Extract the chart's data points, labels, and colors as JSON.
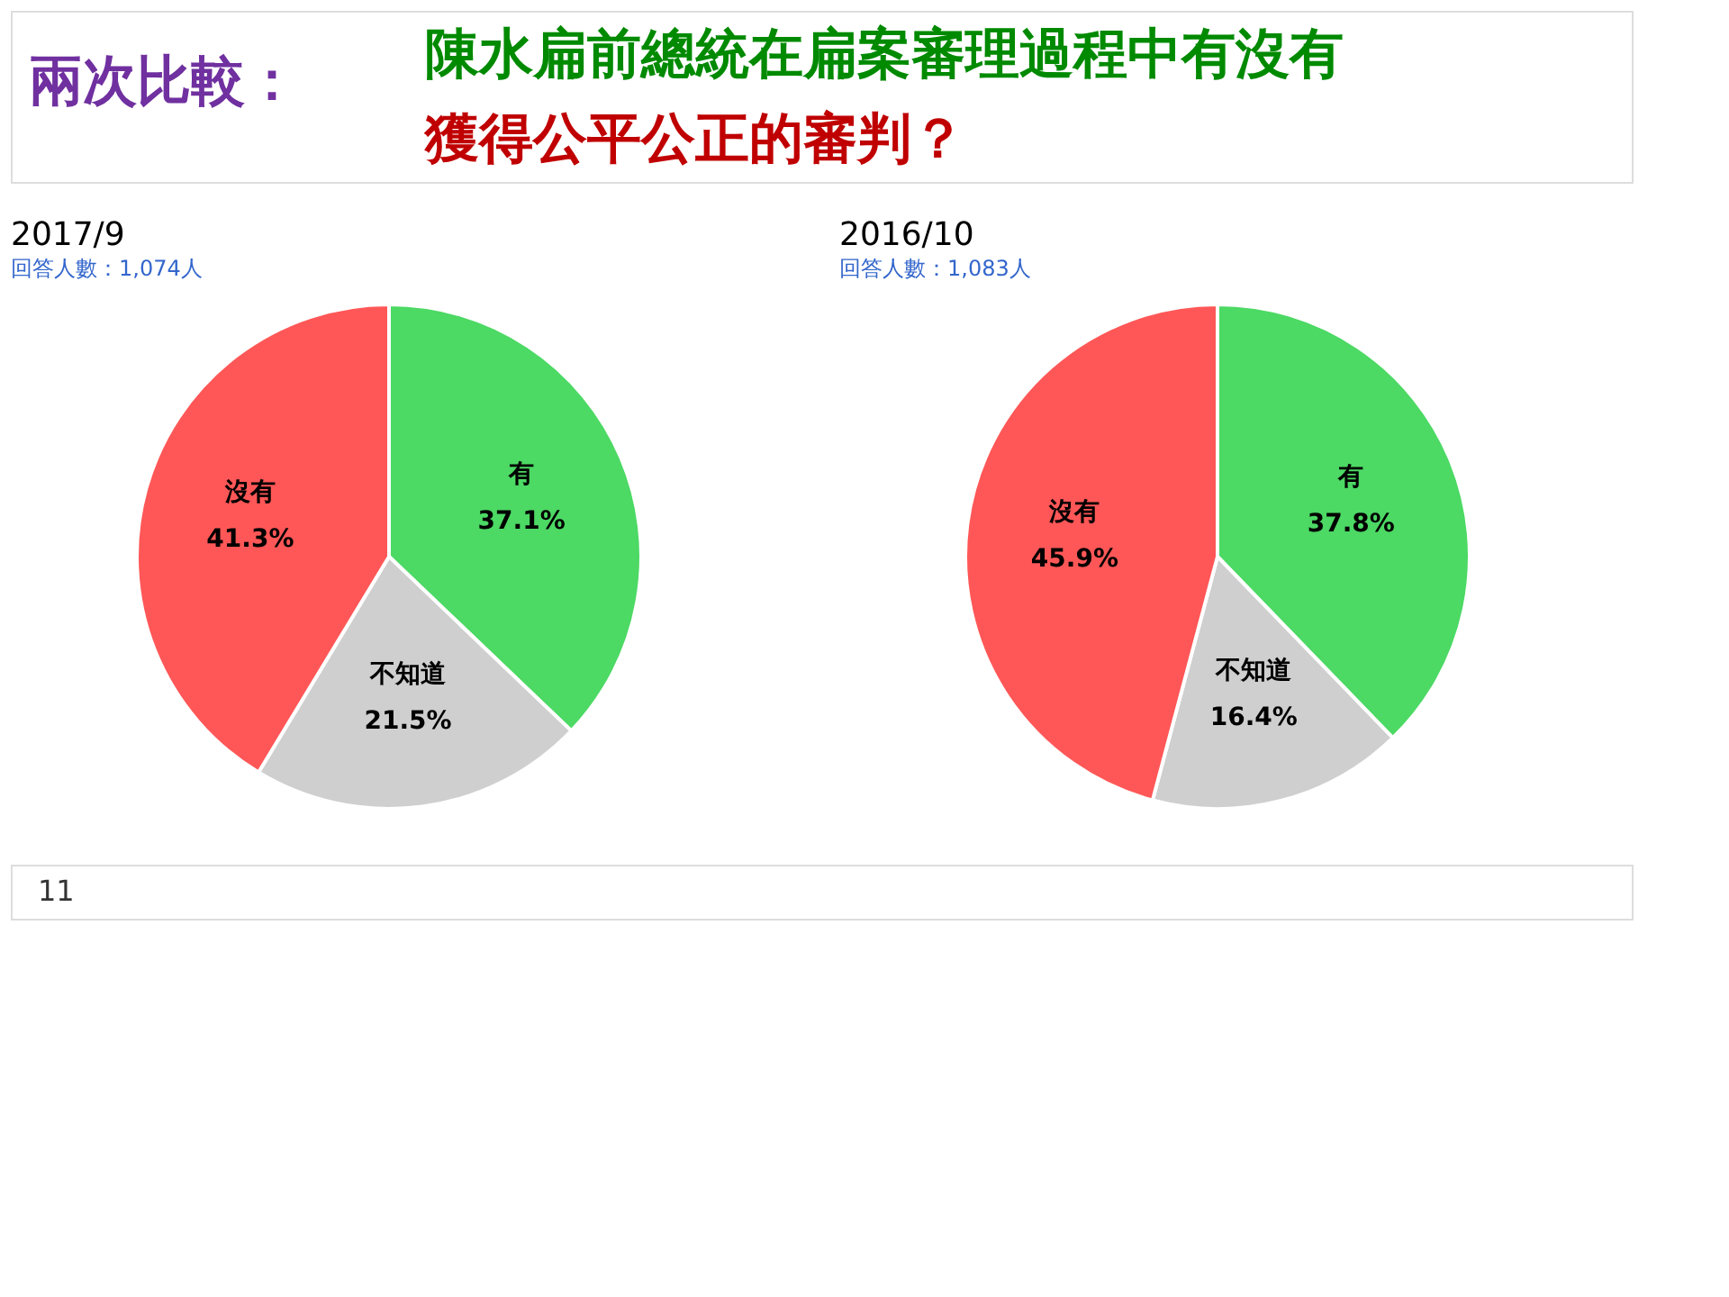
{
  "chart_data": [
    {
      "type": "pie",
      "title": "2017/9",
      "subtitle": "回答人數：1,074人",
      "categories": [
        "有",
        "不知道",
        "沒有"
      ],
      "values": [
        37.1,
        21.5,
        41.3
      ],
      "colors": [
        "#4cd964",
        "#cfcfcf",
        "#ff5757"
      ],
      "value_labels": [
        "37.1%",
        "21.5%",
        "41.3%"
      ],
      "annotations": [
        "兩次比較：",
        "陳水扁前總統在扁案審理過程中有沒有",
        "獲得公平公正的審判？",
        "11"
      ]
    },
    {
      "type": "pie",
      "title": "2016/10",
      "subtitle": "回答人數：1,083人",
      "categories": [
        "有",
        "不知道",
        "沒有"
      ],
      "values": [
        37.8,
        16.4,
        45.9
      ],
      "colors": [
        "#4cd964",
        "#cfcfcf",
        "#ff5757"
      ],
      "value_labels": [
        "37.8%",
        "16.4%",
        "45.9%"
      ]
    }
  ]
}
